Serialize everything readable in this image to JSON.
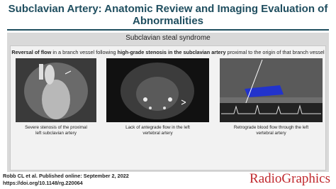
{
  "header": {
    "title_lines": [
      "Subclavian Artery: Anatomic Review and Imaging Evaluation of",
      "Abnormalities"
    ]
  },
  "panel": {
    "heading": "Subclavian steal syndrome",
    "description": [
      {
        "text": "Reversal of flow",
        "bold": true
      },
      {
        "text": " in a branch vessel following ",
        "bold": false
      },
      {
        "text": "high-grade stenosis in the subclavian artery",
        "bold": true
      },
      {
        "text": " proximal to the origin of that branch vessel",
        "bold": false
      }
    ],
    "figures": [
      {
        "caption_lines": [
          "Severe stenosis of the proximal",
          "left subclavian artery"
        ]
      },
      {
        "caption_lines": [
          "Lack of antegrade flow in the left",
          "vertebral artery"
        ]
      },
      {
        "caption_lines": [
          "Retrograde blood flow through the left",
          "vertebral artery"
        ]
      }
    ]
  },
  "footer": {
    "citation": "Robb CL et al. Published online: September 2, 2022",
    "doi": "https://doi.org/10.1148/rg.220064",
    "logo": "RadioGraphics"
  }
}
